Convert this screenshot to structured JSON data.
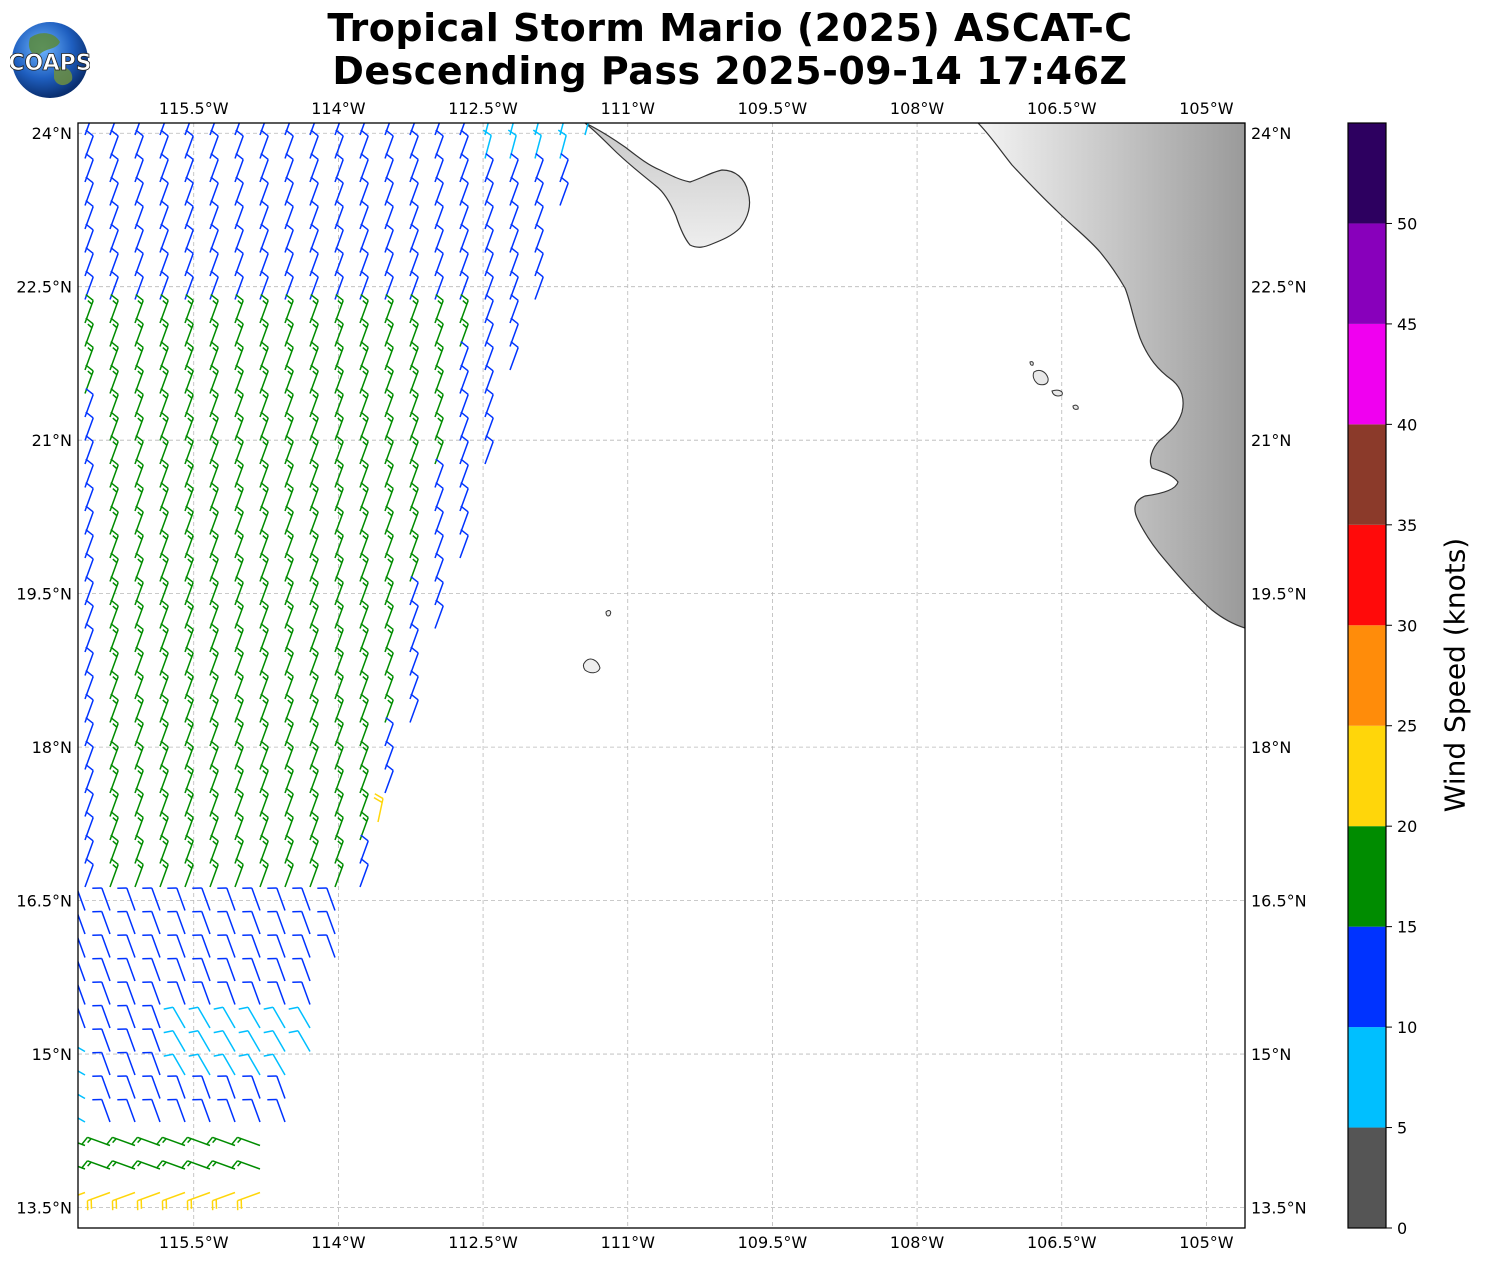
{
  "title": {
    "line1": "Tropical Storm Mario (2025) ASCAT-C",
    "line2": "Descending Pass 2025-09-14 17:46Z"
  },
  "logo": {
    "text": "COAPS"
  },
  "map": {
    "lon_range": [
      -116.7,
      -104.6
    ],
    "lat_range": [
      13.3,
      24.1
    ],
    "lon_ticks": [
      {
        "value": -115.5,
        "label": "115.5°W"
      },
      {
        "value": -114.0,
        "label": "114°W"
      },
      {
        "value": -112.5,
        "label": "112.5°W"
      },
      {
        "value": -111.0,
        "label": "111°W"
      },
      {
        "value": -109.5,
        "label": "109.5°W"
      },
      {
        "value": -108.0,
        "label": "108°W"
      },
      {
        "value": -106.5,
        "label": "106.5°W"
      },
      {
        "value": -105.0,
        "label": "105°W"
      }
    ],
    "lat_ticks": [
      {
        "value": 24.0,
        "label": "24°N"
      },
      {
        "value": 22.5,
        "label": "22.5°N"
      },
      {
        "value": 21.0,
        "label": "21°N"
      },
      {
        "value": 19.5,
        "label": "19.5°N"
      },
      {
        "value": 18.0,
        "label": "18°N"
      },
      {
        "value": 16.5,
        "label": "16.5°N"
      },
      {
        "value": 15.0,
        "label": "15°N"
      },
      {
        "value": 13.5,
        "label": "13.5°N"
      }
    ],
    "gridlines": true
  },
  "colorbar": {
    "label": "Wind Speed (knots)",
    "ticks": [
      "0",
      "5",
      "10",
      "15",
      "20",
      "25",
      "30",
      "35",
      "40",
      "45",
      "50"
    ],
    "colors": [
      "#555555",
      "#00bfff",
      "#0033ff",
      "#008c00",
      "#ffd60a",
      "#ff8c0a",
      "#ff0a0a",
      "#8b3a2a",
      "#f000f0",
      "#8800bb",
      "#2d0060"
    ]
  }
}
